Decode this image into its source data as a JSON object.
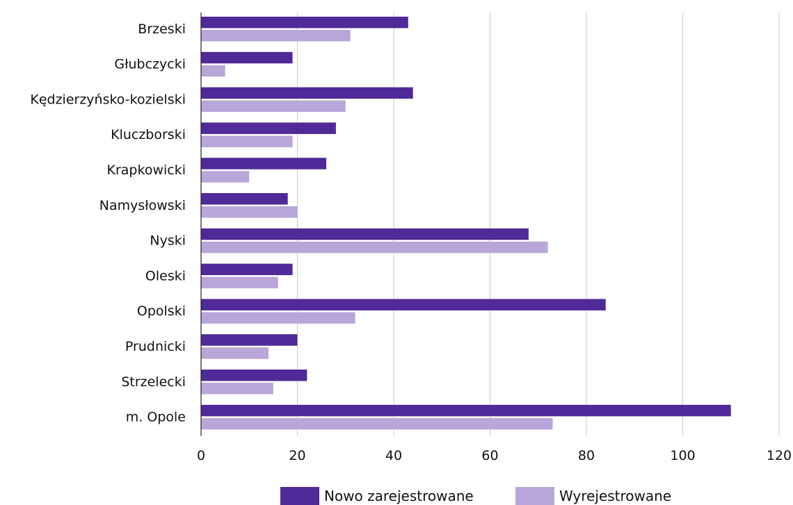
{
  "chart_data": {
    "type": "bar",
    "orientation": "horizontal",
    "categories": [
      "Brzeski",
      "Głubczycki",
      "Kędzierzyńsko-kozielski",
      "Kluczborski",
      "Krapkowicki",
      "Namysłowski",
      "Nyski",
      "Oleski",
      "Opolski",
      "Prudnicki",
      "Strzelecki",
      "m. Opole"
    ],
    "series": [
      {
        "name": "Nowo zarejestrowane",
        "color": "#4f2a98",
        "values": [
          43,
          19,
          44,
          28,
          26,
          18,
          68,
          19,
          84,
          20,
          22,
          110
        ]
      },
      {
        "name": "Wyrejestrowane",
        "color": "#b9a6d8",
        "values": [
          31,
          5,
          30,
          19,
          10,
          20,
          72,
          16,
          32,
          14,
          15,
          73
        ]
      }
    ],
    "xlim": [
      0,
      120
    ],
    "xticks": [
      0,
      20,
      40,
      60,
      80,
      100,
      120
    ],
    "grid": true,
    "legend_position": "bottom"
  }
}
